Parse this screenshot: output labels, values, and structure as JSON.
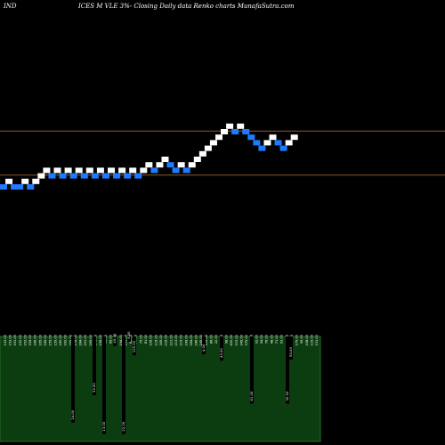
{
  "header": {
    "symbol": "IND",
    "title": "ICES M VLE 3%-  Closing Daily data  Renko  charts MunafaSutra.com"
  },
  "colors": {
    "background": "#000000",
    "up_brick": "#ffffff",
    "down_brick": "#1e7bff",
    "hline": "#8a5a2a",
    "volume_panel": "#0b3d10",
    "volume_panel_border": "#2a6a2a",
    "volume_bar": "#000000",
    "label_text": "#ffffff"
  },
  "chart_data": [
    {
      "type": "renko",
      "title": "ICES M VLE 3%-  Closing Daily data  Renko  charts MunafaSutra.com",
      "bricks": [
        {
          "dir": "down",
          "level": 0
        },
        {
          "dir": "up",
          "level": 1
        },
        {
          "dir": "down",
          "level": 0
        },
        {
          "dir": "down",
          "level": 0
        },
        {
          "dir": "up",
          "level": 1
        },
        {
          "dir": "down",
          "level": 0
        },
        {
          "dir": "up",
          "level": 1
        },
        {
          "dir": "up",
          "level": 2
        },
        {
          "dir": "up",
          "level": 3
        },
        {
          "dir": "down",
          "level": 2
        },
        {
          "dir": "up",
          "level": 3
        },
        {
          "dir": "down",
          "level": 2
        },
        {
          "dir": "up",
          "level": 3
        },
        {
          "dir": "down",
          "level": 2
        },
        {
          "dir": "up",
          "level": 3
        },
        {
          "dir": "down",
          "level": 2
        },
        {
          "dir": "up",
          "level": 3
        },
        {
          "dir": "down",
          "level": 2
        },
        {
          "dir": "up",
          "level": 3
        },
        {
          "dir": "down",
          "level": 2
        },
        {
          "dir": "up",
          "level": 3
        },
        {
          "dir": "down",
          "level": 2
        },
        {
          "dir": "up",
          "level": 3
        },
        {
          "dir": "down",
          "level": 2
        },
        {
          "dir": "up",
          "level": 3
        },
        {
          "dir": "down",
          "level": 2
        },
        {
          "dir": "up",
          "level": 3
        },
        {
          "dir": "up",
          "level": 4
        },
        {
          "dir": "down",
          "level": 3
        },
        {
          "dir": "up",
          "level": 4
        },
        {
          "dir": "up",
          "level": 5
        },
        {
          "dir": "down",
          "level": 4
        },
        {
          "dir": "down",
          "level": 3
        },
        {
          "dir": "up",
          "level": 4
        },
        {
          "dir": "down",
          "level": 3
        },
        {
          "dir": "up",
          "level": 4
        },
        {
          "dir": "up",
          "level": 5
        },
        {
          "dir": "up",
          "level": 6
        },
        {
          "dir": "up",
          "level": 7
        },
        {
          "dir": "up",
          "level": 8
        },
        {
          "dir": "up",
          "level": 9
        },
        {
          "dir": "up",
          "level": 10
        },
        {
          "dir": "up",
          "level": 11
        },
        {
          "dir": "down",
          "level": 10
        },
        {
          "dir": "up",
          "level": 11
        },
        {
          "dir": "down",
          "level": 10
        },
        {
          "dir": "down",
          "level": 9
        },
        {
          "dir": "down",
          "level": 8
        },
        {
          "dir": "down",
          "level": 7
        },
        {
          "dir": "up",
          "level": 8
        },
        {
          "dir": "up",
          "level": 9
        },
        {
          "dir": "down",
          "level": 8
        },
        {
          "dir": "down",
          "level": 7
        },
        {
          "dir": "up",
          "level": 8
        },
        {
          "dir": "up",
          "level": 9
        }
      ],
      "horizontal_lines": [
        {
          "level": 9
        },
        {
          "level": 1
        }
      ],
      "volume": {
        "bars": [
          {
            "label": "24.00",
            "value": 0.82
          },
          {
            "label": "33.00",
            "value": 0.56
          },
          {
            "label": "13.00",
            "value": 0.93
          },
          {
            "label": "45.00",
            "value": 0.09
          },
          {
            "label": "22.00",
            "value": 0.93
          },
          {
            "label": "125.00",
            "value": 0.18
          },
          {
            "label": "4.00",
            "value": 0.17
          },
          {
            "label": "43.00",
            "value": 0.23
          },
          {
            "label": "30.00",
            "value": 0.64
          },
          {
            "label": "61.00",
            "value": 0.64
          },
          {
            "label": "5.00",
            "value": 0.05
          },
          {
            "label": "53.00",
            "value": 0.22
          }
        ],
        "tick_labels": [
          "133.00",
          "153.00",
          "151.00",
          "152.00",
          "153.00",
          "155.00",
          "166.00",
          "165.00",
          "166.00",
          "155.00",
          "159.00",
          "160.00",
          "162.00",
          "269.00",
          "276.00",
          "284.00",
          "291.00",
          "265.00",
          "175.00",
          "156.00",
          "93.00",
          "65.00",
          "134.00",
          "194.00",
          "191.00",
          "65.00",
          "77.00",
          "75.00",
          "81.00",
          "106.00",
          "115.00",
          "185.00",
          "216.00",
          "221.00",
          "213.00",
          "215.00",
          "296.00",
          "284.00",
          "286.00",
          "245.00",
          "125.00",
          "86.00",
          "22.00",
          "77.00",
          "98.00",
          "400.00",
          "372.00",
          "345.00",
          "375.00",
          "185.00",
          "92.00",
          "94.00",
          "76.00",
          "48.00",
          "71.00",
          "93.00",
          "114.00",
          "223.00",
          "179.00",
          "95.00",
          "108.00",
          "115.00",
          "131.00"
        ]
      }
    }
  ]
}
